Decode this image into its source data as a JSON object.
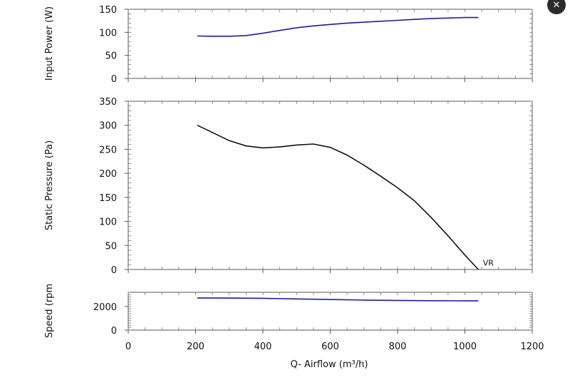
{
  "close_button": {
    "glyph": "✕"
  },
  "chart_data": [
    {
      "type": "line",
      "ylabel": "Input Power (W)",
      "xlim": [
        0,
        1200
      ],
      "ylim": [
        0,
        150
      ],
      "yticks": [
        "0",
        "50",
        "100",
        "150"
      ],
      "series": [
        {
          "color": "#1a1aa6",
          "x": [
            205,
            250,
            300,
            350,
            400,
            450,
            500,
            550,
            600,
            650,
            700,
            750,
            800,
            850,
            900,
            950,
            1000,
            1040
          ],
          "y": [
            92,
            91.5,
            91.5,
            93,
            98,
            104,
            110,
            114,
            117,
            120,
            122,
            124,
            126,
            128,
            130,
            131,
            132,
            132
          ]
        }
      ]
    },
    {
      "type": "line",
      "ylabel": "Static Pressure (Pa)",
      "xlim": [
        0,
        1200
      ],
      "ylim": [
        0,
        350
      ],
      "yticks": [
        "0",
        "50",
        "100",
        "150",
        "200",
        "250",
        "300",
        "350"
      ],
      "series": [
        {
          "color": "#111111",
          "x": [
            205,
            250,
            300,
            350,
            400,
            450,
            500,
            550,
            600,
            650,
            700,
            750,
            800,
            850,
            900,
            950,
            1000,
            1040
          ],
          "y": [
            300,
            285,
            268,
            257,
            253,
            255,
            259,
            261,
            254,
            238,
            217,
            194,
            170,
            143,
            108,
            70,
            30,
            0
          ]
        }
      ],
      "annotations": [
        {
          "text": "VR",
          "x": 1045,
          "y": 5
        }
      ]
    },
    {
      "type": "line",
      "ylabel": "Speed (rpm",
      "xlabel": "Q- Airflow (m³/h)",
      "xlim": [
        0,
        1200
      ],
      "ylim": [
        0,
        3200
      ],
      "yticks": [
        "0",
        "2000"
      ],
      "xticks": [
        "0",
        "200",
        "400",
        "600",
        "800",
        "1000",
        "1200"
      ],
      "series": [
        {
          "color": "#1a1aa6",
          "x": [
            205,
            300,
            400,
            500,
            600,
            700,
            800,
            900,
            1000,
            1040
          ],
          "y": [
            2720,
            2710,
            2690,
            2640,
            2590,
            2540,
            2510,
            2490,
            2480,
            2480
          ]
        }
      ]
    }
  ]
}
